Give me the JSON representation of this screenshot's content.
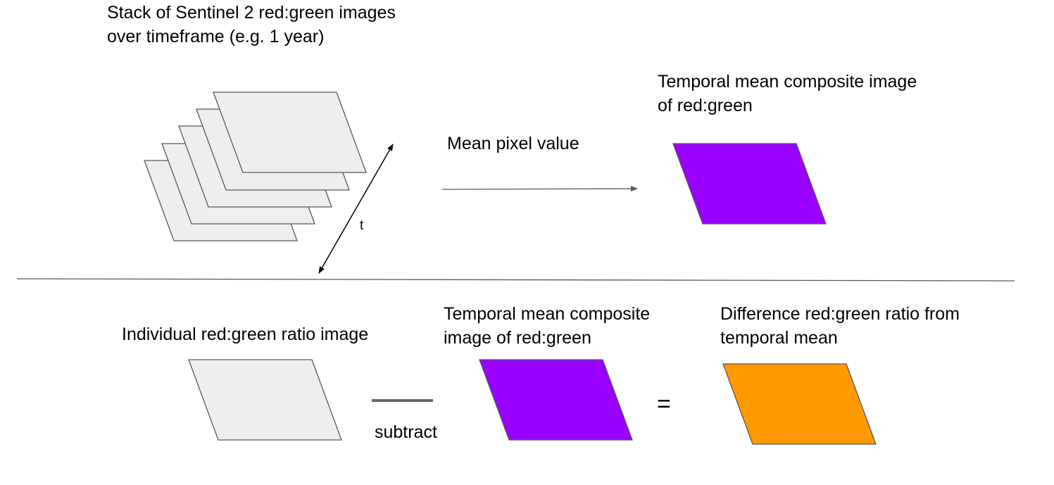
{
  "top": {
    "stack_label_line1": "Stack of Sentinel 2 red:green images",
    "stack_label_line2": "over timeframe (e.g. 1 year)",
    "time_axis_label": "t",
    "mean_label": "Mean pixel value",
    "composite_label_line1": "Temporal mean composite image",
    "composite_label_line2": "of red:green"
  },
  "bottom": {
    "individual_label": "Individual red:green ratio image",
    "subtract_label": "subtract",
    "composite_label_line1": "Temporal mean composite",
    "composite_label_line2": "image of red:green",
    "equals_sign": "=",
    "difference_label_line1": "Difference red:green ratio from",
    "difference_label_line2": "temporal mean"
  },
  "colors": {
    "image_gray": "#eeeeee",
    "composite_purple": "#9900ff",
    "difference_orange": "#ff9900",
    "stroke": "#595959"
  }
}
